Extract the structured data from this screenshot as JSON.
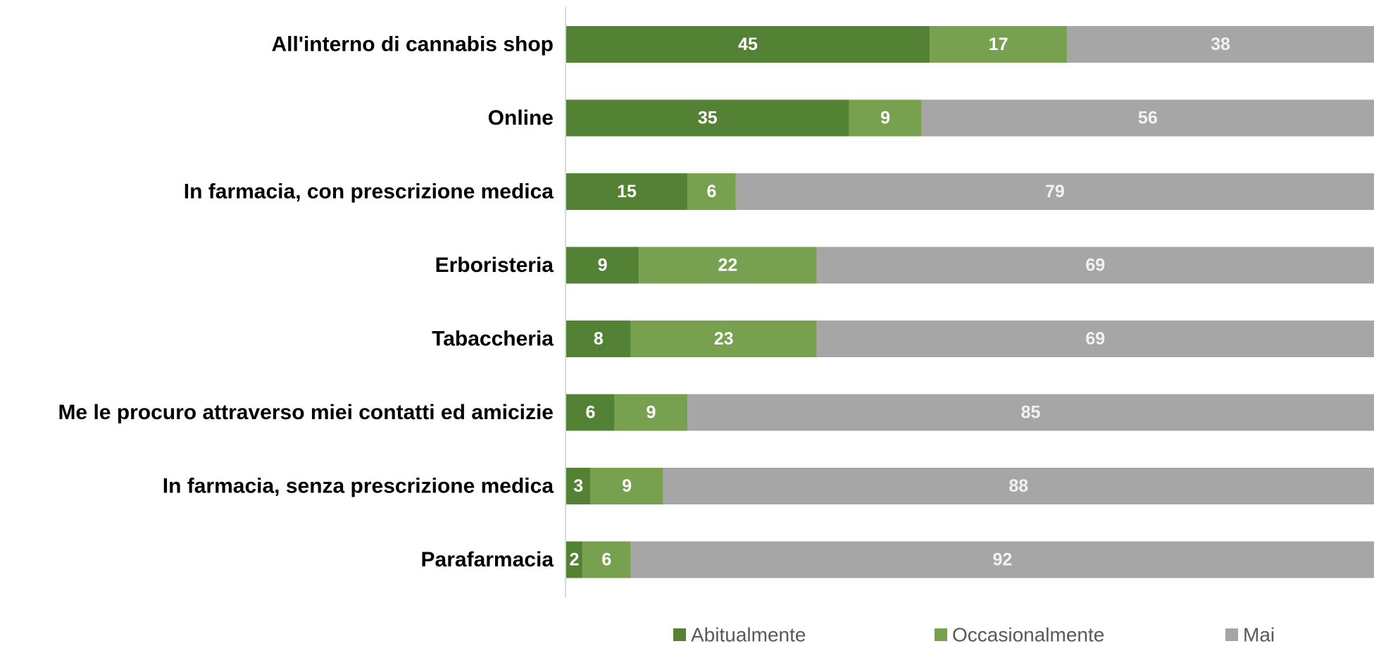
{
  "chart_data": {
    "type": "bar",
    "orientation": "horizontal",
    "stacked": true,
    "categories": [
      "All'interno di cannabis shop",
      "Online",
      "In farmacia, con prescrizione medica",
      "Erboristeria",
      "Tabaccheria",
      "Me le procuro attraverso miei contatti ed amicizie",
      "In farmacia, senza prescrizione medica",
      "Parafarmacia"
    ],
    "series": [
      {
        "name": "Abitualmente",
        "color": "#548235",
        "values": [
          45,
          35,
          15,
          9,
          8,
          6,
          3,
          2
        ]
      },
      {
        "name": "Occasionalmente",
        "color": "#77A04F",
        "values": [
          17,
          9,
          6,
          22,
          23,
          9,
          9,
          6
        ]
      },
      {
        "name": "Mai",
        "color": "#A6A6A6",
        "values": [
          38,
          56,
          79,
          69,
          69,
          85,
          88,
          92
        ]
      }
    ],
    "xlim": [
      0,
      100
    ],
    "legend_position": "bottom",
    "grid": false
  }
}
